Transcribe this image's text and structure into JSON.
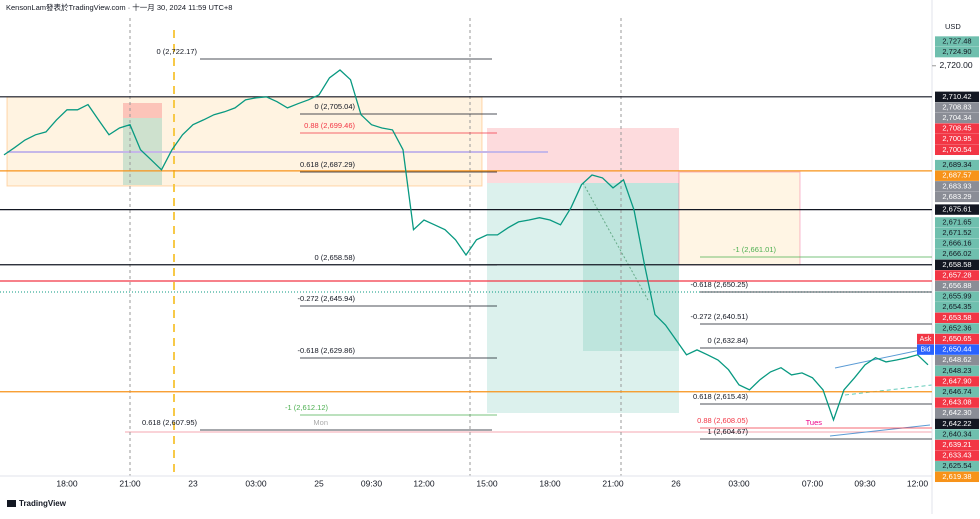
{
  "header": {
    "title": "KensonLam發表於TradingView.com · 十一月 30, 2024 11:59 UTC+8",
    "currency": "USD",
    "brand": "TradingView"
  },
  "chart_data": {
    "type": "line",
    "color": "#089981",
    "categories": [
      null,
      null,
      null,
      null,
      null,
      null,
      "18:00",
      null,
      null,
      null,
      null,
      null,
      "21:00",
      null,
      null,
      null,
      null,
      null,
      "23",
      null,
      null,
      null,
      null,
      null,
      "03:00",
      null,
      null,
      null,
      null,
      null,
      "25",
      null,
      null,
      null,
      null,
      "09:30",
      null,
      null,
      null,
      null,
      "12:00",
      null,
      null,
      null,
      null,
      null,
      "15:00",
      null,
      null,
      null,
      null,
      null,
      "18:00",
      null,
      null,
      null,
      null,
      null,
      "21:00",
      null,
      null,
      null,
      null,
      null,
      "26",
      null,
      null,
      null,
      null,
      null,
      "03:00",
      null,
      null,
      null,
      null,
      null,
      null,
      "07:00",
      null,
      null,
      null,
      null,
      "09:30",
      null,
      null,
      null,
      null,
      "12:00",
      null
    ],
    "values": [
      2692.5,
      2694.7,
      2697.1,
      2698.7,
      2699.6,
      2703.3,
      2706.4,
      2706.4,
      2708.0,
      2703.3,
      2698.7,
      2700.8,
      2701.8,
      2694.1,
      2691.0,
      2687.9,
      2694.1,
      2698.7,
      2701.8,
      2703.3,
      2704.9,
      2705.8,
      2707.0,
      2709.5,
      2710.1,
      2710.4,
      2708.9,
      2707.0,
      2708.3,
      2709.5,
      2711.0,
      2716.3,
      2718.7,
      2715.7,
      2704.9,
      2701.8,
      2700.8,
      2700.2,
      2694.1,
      2669.4,
      2672.4,
      2670.9,
      2669.4,
      2666.3,
      2661.6,
      2666.3,
      2667.8,
      2667.8,
      2670.0,
      2671.8,
      2672.4,
      2673.1,
      2672.4,
      2670.9,
      2676.2,
      2683.3,
      2686.3,
      2685.4,
      2682.3,
      2684.8,
      2675.5,
      2658.6,
      2643.2,
      2640.0,
      2635.4,
      2630.8,
      2632.3,
      2630.8,
      2629.2,
      2626.2,
      2621.5,
      2620.0,
      2623.1,
      2625.5,
      2626.8,
      2624.6,
      2625.2,
      2623.7,
      2620.0,
      2610.7,
      2620.0,
      2623.7,
      2627.7,
      2629.9,
      2628.6,
      2629.2,
      2629.9,
      2630.8,
      2627.7
    ],
    "ylim": [
      2586.9,
      2740.3
    ],
    "yticks": [
      {
        "value": 2720,
        "label": "2,720.00"
      }
    ]
  },
  "price_labels": [
    {
      "value": 2727.48,
      "label": "2,727.48",
      "color": "#6fbfae"
    },
    {
      "value": 2724.9,
      "label": "2,724.90",
      "color": "#6fbfae"
    },
    {
      "value": 2710.42,
      "label": "2,710.42",
      "color": "#131722",
      "line": true
    },
    {
      "value": 2708.83,
      "label": "2,708.83",
      "color": "#8a8d96"
    },
    {
      "value": 2704.34,
      "label": "2,704.34",
      "color": "#8a8d96"
    },
    {
      "value": 2708.45,
      "label": "2,708.45",
      "color": "#f23645"
    },
    {
      "value": 2700.95,
      "label": "2,700.95",
      "color": "#f23645"
    },
    {
      "value": 2700.54,
      "label": "2,700.54",
      "color": "#f23645"
    },
    {
      "value": 2689.34,
      "label": "2,689.34",
      "color": "#6fbfae"
    },
    {
      "value": 2687.57,
      "label": "2,687.57",
      "color": "#f7931a",
      "line": true
    },
    {
      "value": 2683.93,
      "label": "2,683.93",
      "color": "#8a8d96"
    },
    {
      "value": 2683.29,
      "label": "2,683.29",
      "color": "#8a8d96"
    },
    {
      "value": 2675.61,
      "label": "2,675.61",
      "color": "#131722",
      "line": true
    },
    {
      "value": 2671.65,
      "label": "2,671.65",
      "color": "#6fbfae"
    },
    {
      "value": 2671.52,
      "label": "2,671.52",
      "color": "#6fbfae"
    },
    {
      "value": 2666.16,
      "label": "2,666.16",
      "color": "#6fbfae"
    },
    {
      "value": 2666.02,
      "label": "2,666.02",
      "color": "#6fbfae"
    },
    {
      "value": 2658.58,
      "label": "2,658.58",
      "color": "#131722",
      "line": true
    },
    {
      "value": 2657.28,
      "label": "2,657.28",
      "color": "#f23645"
    },
    {
      "value": 2656.88,
      "label": "2,656.88",
      "color": "#8a8d96"
    },
    {
      "value": 2655.99,
      "label": "2,655.99",
      "color": "#6fbfae"
    },
    {
      "value": 2654.35,
      "label": "2,654.35",
      "color": "#6fbfae"
    },
    {
      "value": 2653.58,
      "label": "2,653.58",
      "color": "#f23645",
      "line": true
    },
    {
      "value": 2652.36,
      "label": "2,652.36",
      "color": "#6fbfae"
    },
    {
      "value": 2650.65,
      "label": "2,650.65",
      "color": "#f23645",
      "tag": "Ask"
    },
    {
      "value": 2650.44,
      "label": "2,650.44",
      "color": "#2962ff",
      "tag": "Bid"
    },
    {
      "value": 2648.62,
      "label": "2,648.62",
      "color": "#8a8d96"
    },
    {
      "value": 2648.23,
      "label": "2,648.23",
      "color": "#6fbfae"
    },
    {
      "value": 2647.9,
      "label": "2,647.90",
      "color": "#f23645"
    },
    {
      "value": 2646.74,
      "label": "2,646.74",
      "color": "#6fbfae"
    },
    {
      "value": 2643.08,
      "label": "2,643.08",
      "color": "#f23645"
    },
    {
      "value": 2642.3,
      "label": "2,642.30",
      "color": "#8a8d96"
    },
    {
      "value": 2642.22,
      "label": "2,642.22",
      "color": "#131722"
    },
    {
      "value": 2640.34,
      "label": "2,640.34",
      "color": "#6fbfae"
    },
    {
      "value": 2639.21,
      "label": "2,639.21",
      "color": "#f23645"
    },
    {
      "value": 2633.43,
      "label": "2,633.43",
      "color": "#f23645"
    },
    {
      "value": 2625.54,
      "label": "2,625.54",
      "color": "#6fbfae"
    },
    {
      "value": 2619.38,
      "label": "2,619.38",
      "color": "#f7931a",
      "line": true
    }
  ],
  "annotations": [
    "0 (2,722.17)",
    "0 (2,705.04)",
    "0.88 (2,699.46)",
    "0.618 (2,687.29)",
    "0 (2,658.58)",
    "-0.272 (2,645.94)",
    "-0.618 (2,629.86)",
    "-1 (2,612.12)",
    "0.618 (2,607.95)",
    "Mon",
    "-1 (2,661.01)",
    "-0.618 (2,650.25)",
    "-0.272 (2,640.51)",
    "0 (2,632.84)",
    "0.618 (2,615.43)",
    "0.88 (2,608.05)",
    "1 (2,604.67)",
    "Tues"
  ]
}
